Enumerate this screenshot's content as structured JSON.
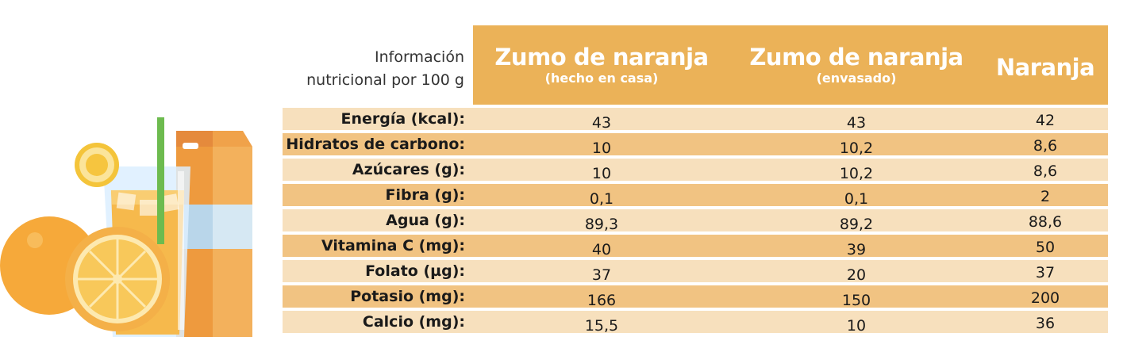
{
  "caption": {
    "line1": "Información",
    "line2": "nutricional por 100 g"
  },
  "columns": [
    {
      "title": "Zumo de naranja",
      "subtitle": "(hecho en casa)"
    },
    {
      "title": "Zumo de naranja",
      "subtitle": "(envasado)"
    },
    {
      "title": "Naranja",
      "subtitle": ""
    }
  ],
  "rows": [
    {
      "label": "Energía (kcal):",
      "values": [
        "43",
        "43",
        "42"
      ]
    },
    {
      "label": "Hidratos de carbono:",
      "values": [
        "10",
        "10,2",
        "8,6"
      ]
    },
    {
      "label": "Azúcares (g):",
      "values": [
        "10",
        "10,2",
        "8,6"
      ]
    },
    {
      "label": "Fibra (g):",
      "values": [
        "0,1",
        "0,1",
        "2"
      ]
    },
    {
      "label": "Agua (g):",
      "values": [
        "89,3",
        "89,2",
        "88,6"
      ]
    },
    {
      "label": "Vitamina C (mg):",
      "values": [
        "40",
        "39",
        "50"
      ]
    },
    {
      "label": "Folato (µg):",
      "values": [
        "37",
        "20",
        "37"
      ]
    },
    {
      "label": "Potasio (mg):",
      "values": [
        "166",
        "150",
        "200"
      ]
    },
    {
      "label": "Calcio (mg):",
      "values": [
        "15,5",
        "10",
        "36"
      ]
    }
  ],
  "colors": {
    "header": "#ebb258",
    "row_light": "#f7e0bd",
    "row_dark": "#f1c382"
  },
  "illustration": {
    "icons": [
      "orange-icon",
      "orange-slice-icon",
      "juice-glass-icon",
      "straw-icon",
      "juice-carton-icon"
    ]
  }
}
